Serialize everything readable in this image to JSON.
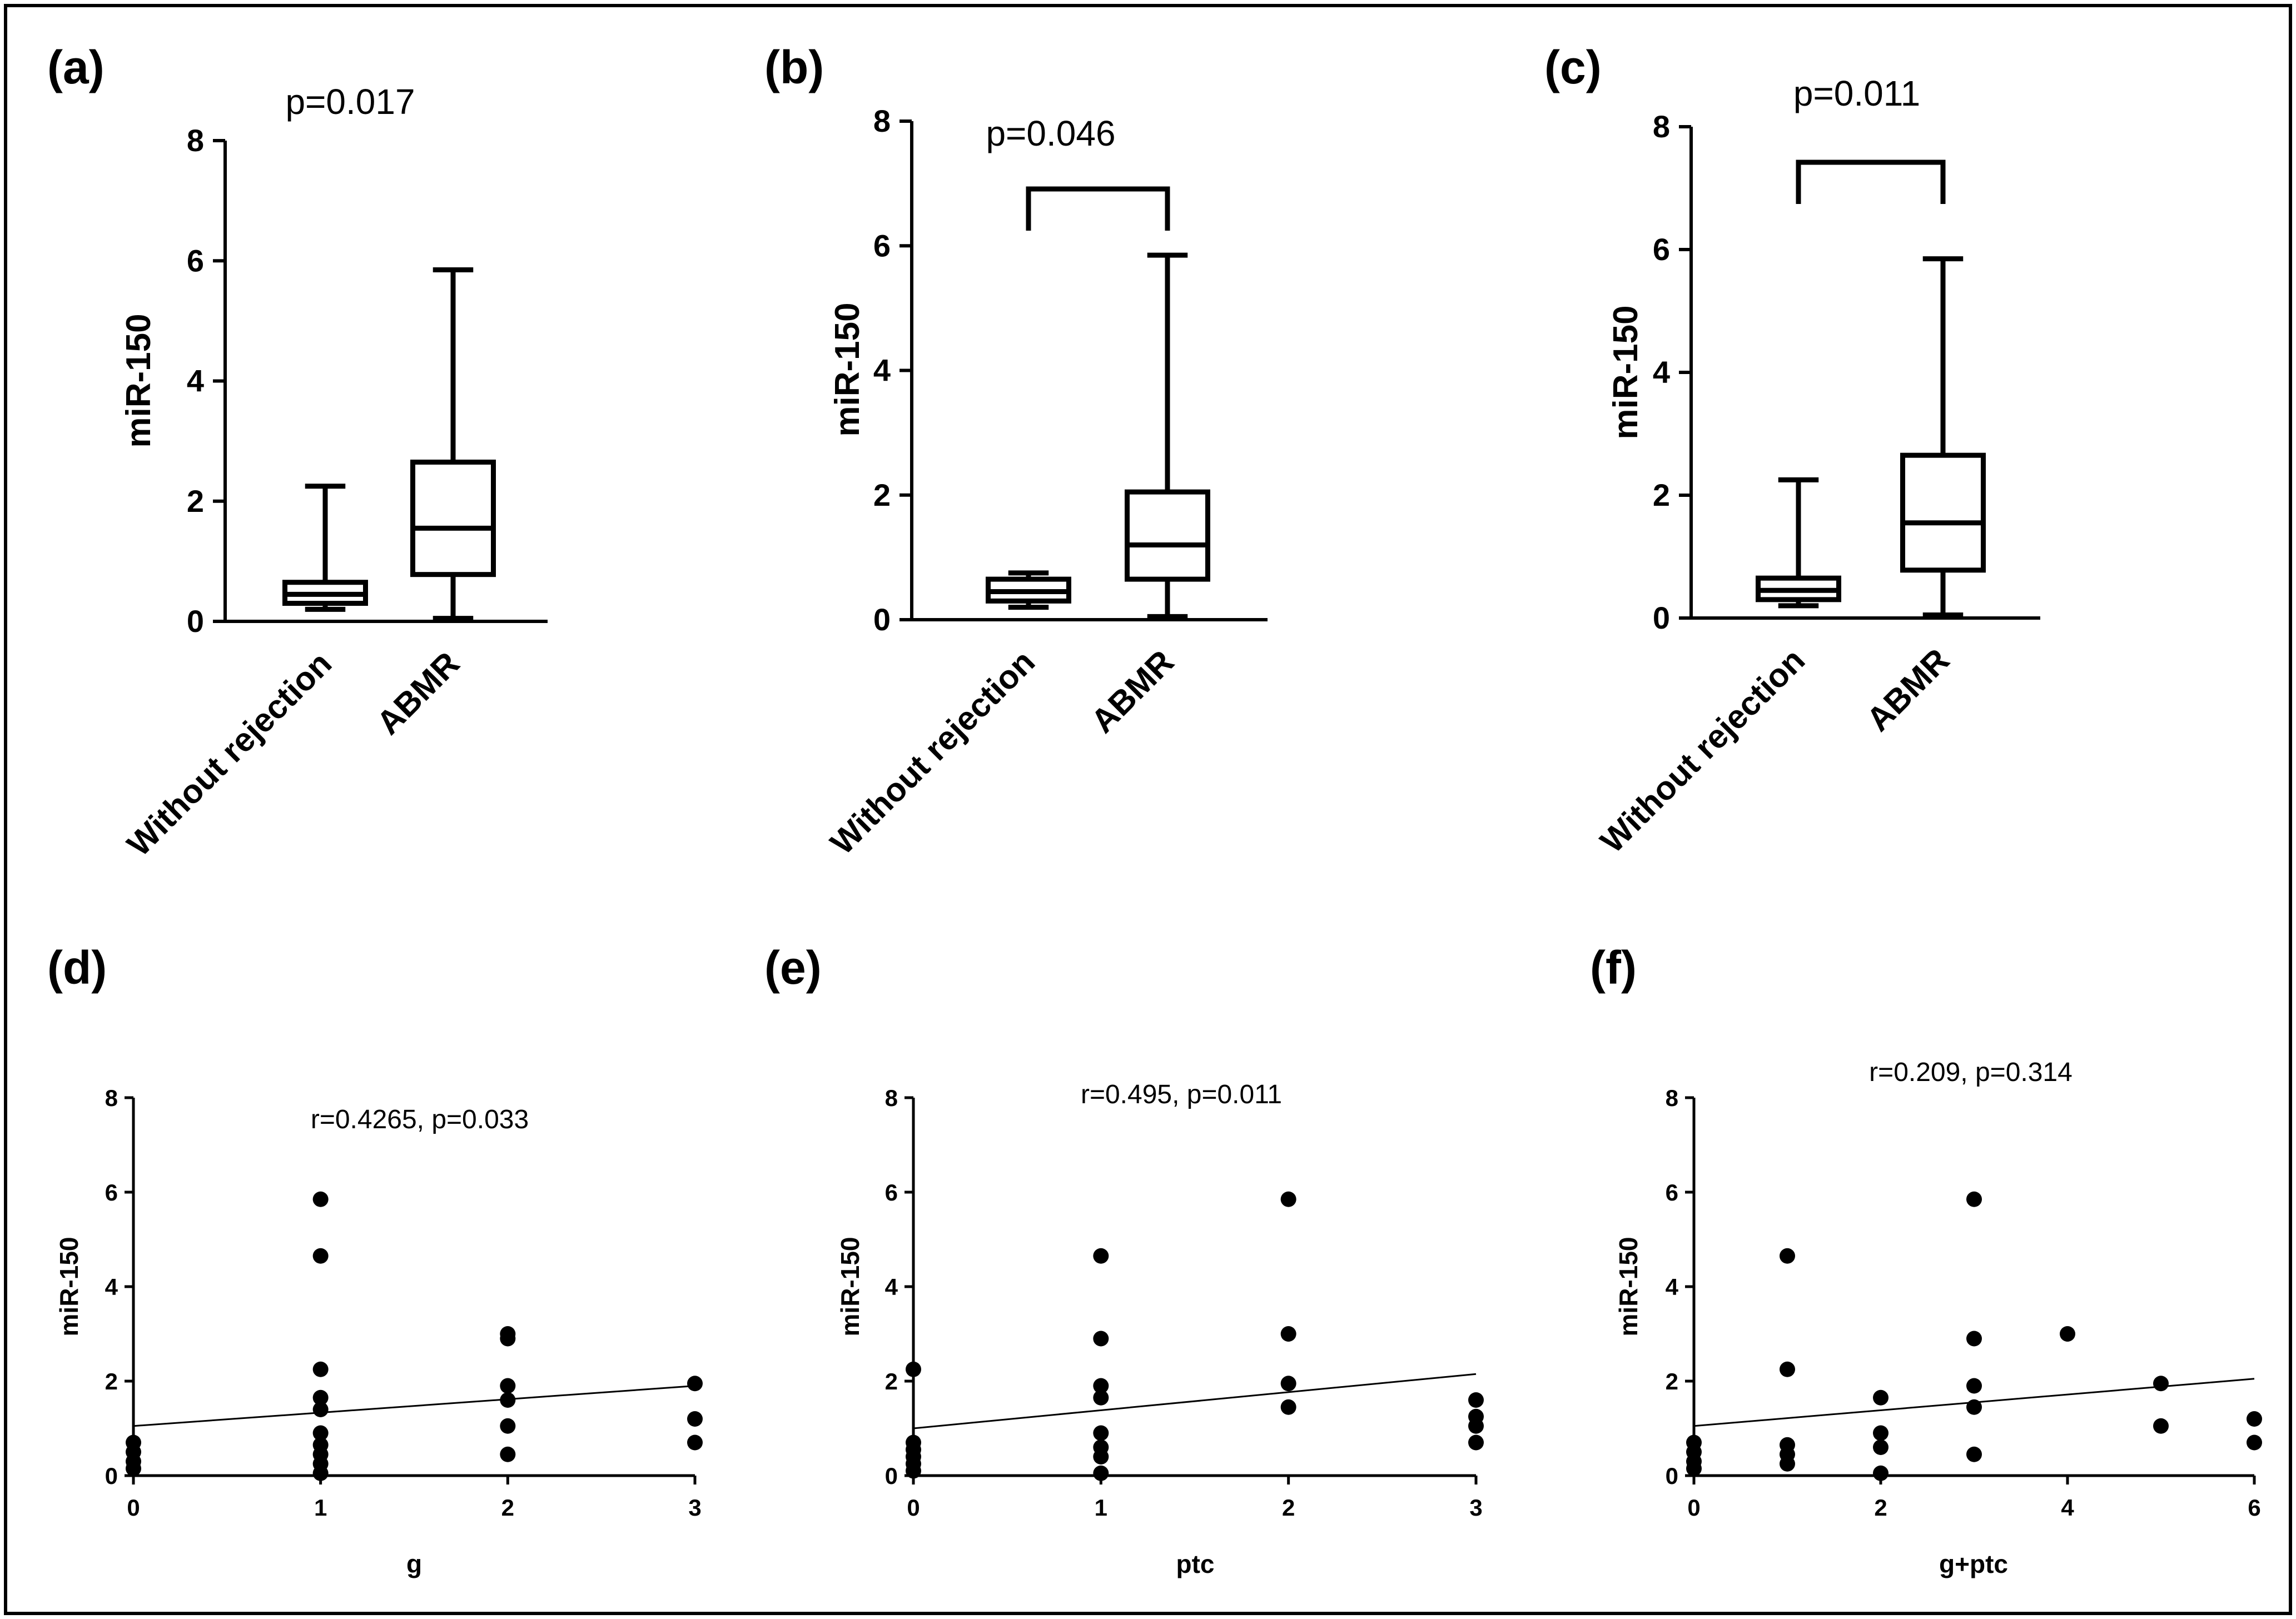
{
  "figure": {
    "border_color": "#000000",
    "point_color": "#000000"
  },
  "chart_data": [
    {
      "id": "a",
      "panel_label": "(a)",
      "type": "box",
      "categories": [
        "Without rejection",
        "ABMR"
      ],
      "ylabel": "miR-150",
      "ylim": [
        0,
        8
      ],
      "yticks": [
        0,
        2,
        4,
        6,
        8
      ],
      "boxes": [
        {
          "min": 0.2,
          "q1": 0.3,
          "median": 0.45,
          "q3": 0.65,
          "max": 2.25
        },
        {
          "min": 0.05,
          "q1": 0.78,
          "median": 1.55,
          "q3": 2.65,
          "max": 5.85
        }
      ],
      "pvalue": "p=0.017",
      "bracket": false
    },
    {
      "id": "b",
      "panel_label": "(b)",
      "type": "box",
      "categories": [
        "Without rejection",
        "ABMR"
      ],
      "ylabel": "miR-150",
      "ylim": [
        0,
        8
      ],
      "yticks": [
        0,
        2,
        4,
        6,
        8
      ],
      "boxes": [
        {
          "min": 0.2,
          "q1": 0.3,
          "median": 0.45,
          "q3": 0.65,
          "max": 0.75
        },
        {
          "min": 0.05,
          "q1": 0.65,
          "median": 1.2,
          "q3": 2.05,
          "max": 5.85
        }
      ],
      "pvalue": "p=0.046",
      "bracket": true
    },
    {
      "id": "c",
      "panel_label": "(c)",
      "type": "box",
      "categories": [
        "Without rejection",
        "ABMR"
      ],
      "ylabel": "miR-150",
      "ylim": [
        0,
        8
      ],
      "yticks": [
        0,
        2,
        4,
        6,
        8
      ],
      "boxes": [
        {
          "min": 0.2,
          "q1": 0.3,
          "median": 0.45,
          "q3": 0.65,
          "max": 2.25
        },
        {
          "min": 0.05,
          "q1": 0.78,
          "median": 1.55,
          "q3": 2.65,
          "max": 5.85
        }
      ],
      "pvalue": "p=0.011",
      "bracket": true
    },
    {
      "id": "d",
      "panel_label": "(d)",
      "type": "scatter",
      "xlabel": "g",
      "ylabel": "miR-150",
      "xlim": [
        0,
        3
      ],
      "ylim": [
        0,
        8
      ],
      "xticks": [
        0,
        1,
        2,
        3
      ],
      "yticks": [
        0,
        2,
        4,
        6,
        8
      ],
      "points": [
        [
          0,
          0.7
        ],
        [
          0,
          0.5
        ],
        [
          0,
          0.3
        ],
        [
          0,
          0.15
        ],
        [
          1,
          5.85
        ],
        [
          1,
          4.65
        ],
        [
          1,
          2.25
        ],
        [
          1,
          1.65
        ],
        [
          1,
          1.4
        ],
        [
          1,
          0.9
        ],
        [
          1,
          0.65
        ],
        [
          1,
          0.45
        ],
        [
          1,
          0.25
        ],
        [
          1,
          0.05
        ],
        [
          2,
          3.0
        ],
        [
          2,
          2.9
        ],
        [
          2,
          1.9
        ],
        [
          2,
          1.6
        ],
        [
          2,
          1.05
        ],
        [
          2,
          0.45
        ],
        [
          3,
          1.95
        ],
        [
          3,
          1.2
        ],
        [
          3,
          0.7
        ]
      ],
      "fit": {
        "x0": 0,
        "y0": 1.05,
        "x1": 3,
        "y1": 1.9
      },
      "annotation": "r=0.4265, p=0.033"
    },
    {
      "id": "e",
      "panel_label": "(e)",
      "type": "scatter",
      "xlabel": "ptc",
      "ylabel": "miR-150",
      "xlim": [
        0,
        3
      ],
      "ylim": [
        0,
        8
      ],
      "xticks": [
        0,
        1,
        2,
        3
      ],
      "yticks": [
        0,
        2,
        4,
        6,
        8
      ],
      "points": [
        [
          0,
          2.25
        ],
        [
          0,
          0.7
        ],
        [
          0,
          0.55
        ],
        [
          0,
          0.4
        ],
        [
          0,
          0.25
        ],
        [
          0,
          0.1
        ],
        [
          1,
          4.65
        ],
        [
          1,
          2.9
        ],
        [
          1,
          1.9
        ],
        [
          1,
          1.65
        ],
        [
          1,
          0.9
        ],
        [
          1,
          0.6
        ],
        [
          1,
          0.4
        ],
        [
          1,
          0.05
        ],
        [
          2,
          5.85
        ],
        [
          2,
          3.0
        ],
        [
          2,
          1.95
        ],
        [
          2,
          1.45
        ],
        [
          3,
          1.6
        ],
        [
          3,
          1.25
        ],
        [
          3,
          1.05
        ],
        [
          3,
          0.7
        ]
      ],
      "fit": {
        "x0": 0,
        "y0": 1.0,
        "x1": 3,
        "y1": 2.15
      },
      "annotation": "r=0.495, p=0.011"
    },
    {
      "id": "f",
      "panel_label": "(f)",
      "type": "scatter",
      "xlabel": "g+ptc",
      "ylabel": "miR-150",
      "xlim": [
        0,
        6
      ],
      "ylim": [
        0,
        8
      ],
      "xticks": [
        0,
        2,
        4,
        6
      ],
      "yticks": [
        0,
        2,
        4,
        6,
        8
      ],
      "points": [
        [
          0,
          0.7
        ],
        [
          0,
          0.5
        ],
        [
          0,
          0.3
        ],
        [
          0,
          0.15
        ],
        [
          1,
          4.65
        ],
        [
          1,
          2.25
        ],
        [
          1,
          0.65
        ],
        [
          1,
          0.45
        ],
        [
          1,
          0.25
        ],
        [
          2,
          1.65
        ],
        [
          2,
          0.9
        ],
        [
          2,
          0.6
        ],
        [
          2,
          0.05
        ],
        [
          3,
          5.85
        ],
        [
          3,
          2.9
        ],
        [
          3,
          1.9
        ],
        [
          3,
          1.45
        ],
        [
          3,
          0.45
        ],
        [
          4,
          3.0
        ],
        [
          5,
          1.95
        ],
        [
          5,
          1.05
        ],
        [
          6,
          1.2
        ],
        [
          6,
          0.7
        ]
      ],
      "fit": {
        "x0": 0,
        "y0": 1.05,
        "x1": 6,
        "y1": 2.05
      },
      "annotation": "r=0.209, p=0.314"
    }
  ]
}
